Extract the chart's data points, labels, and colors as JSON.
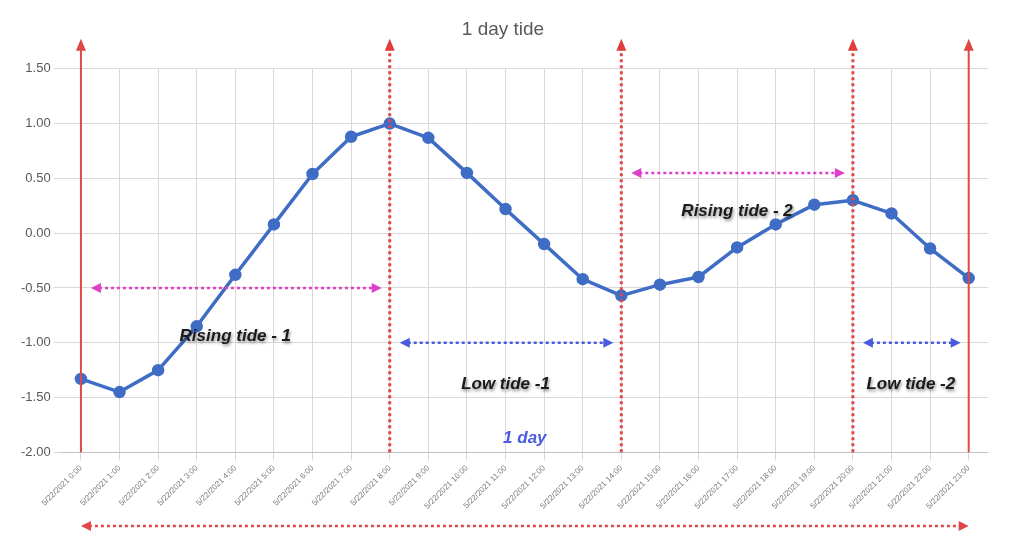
{
  "chart_data": {
    "type": "line",
    "title": "1 day tide",
    "categories": [
      "5/22/2021 0:00",
      "5/22/2021 1:00",
      "5/22/2021 2:00",
      "5/22/2021 3:00",
      "5/22/2021 4:00",
      "5/22/2021 5:00",
      "5/22/2021 6:00",
      "5/22/2021 7:00",
      "5/22/2021 8:00",
      "5/22/2021 9:00",
      "5/22/2021 10:00",
      "5/22/2021 11:00",
      "5/22/2021 12:00",
      "5/22/2021 13:00",
      "5/22/2021 14:00",
      "5/22/2021 15:00",
      "5/22/2021 16:00",
      "5/22/2021 17:00",
      "5/22/2021 18:00",
      "5/22/2021 19:00",
      "5/22/2021 20:00",
      "5/22/2021 21:00",
      "5/22/2021 22:00",
      "5/22/2021 23:00"
    ],
    "series": [
      {
        "color": "#3f6cc4",
        "values": [
          -1.33,
          -1.45,
          -1.25,
          -0.85,
          -0.38,
          0.08,
          0.54,
          0.88,
          1.0,
          0.87,
          0.55,
          0.22,
          -0.1,
          -0.42,
          -0.57,
          -0.47,
          -0.4,
          -0.13,
          0.08,
          0.26,
          0.3,
          0.18,
          -0.14,
          -0.41
        ]
      }
    ],
    "ylim": [
      -2,
      1.5
    ],
    "yticks": [
      {
        "value": -2,
        "label": "-2.00"
      },
      {
        "value": -1.5,
        "label": "-1.50"
      },
      {
        "value": -1,
        "label": "-1.00"
      },
      {
        "value": -0.5,
        "label": "-0.50"
      },
      {
        "value": 0,
        "label": "0.00"
      },
      {
        "value": 0.5,
        "label": "0.50"
      },
      {
        "value": 1,
        "label": "1.00"
      },
      {
        "value": 1.5,
        "label": "1.50"
      }
    ],
    "grid": true,
    "legend": false,
    "marker": "circle",
    "line_style": "solid",
    "annotations": [
      "Rising tide - 1",
      "Low tide -1",
      "Rising tide - 2",
      "Low tide -2",
      "1 day"
    ]
  }
}
